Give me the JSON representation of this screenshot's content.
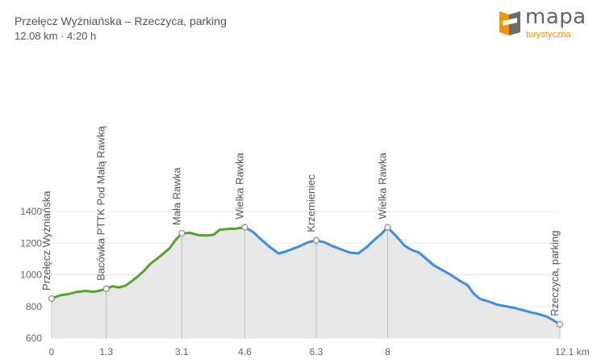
{
  "header": {
    "title": "Przełęcz Wyżniańska – Rzeczyca, parking",
    "subtitle": "12.08 km · 4:20 h"
  },
  "brand": {
    "name": "mapa",
    "sub": "turystyczna",
    "accent": "#f29400",
    "icon": "map-logo-icon"
  },
  "colors": {
    "ascent": "#5aa02c",
    "descent": "#3a8de0",
    "fill": "#e7e7e7",
    "grid": "#e9e9e9",
    "marker_line": "#bdbdbd"
  },
  "chart_data": {
    "type": "area",
    "xlabel": "",
    "ylabel": "",
    "x_unit": "km",
    "xlim": [
      0,
      12.1
    ],
    "ylim": [
      600,
      1400
    ],
    "yticks": [
      600,
      800,
      1000,
      1200,
      1400
    ],
    "xticks": [
      {
        "value": 0,
        "label": "0"
      },
      {
        "value": 1.3,
        "label": "1.3"
      },
      {
        "value": 3.1,
        "label": "3.1"
      },
      {
        "value": 4.6,
        "label": "4.6"
      },
      {
        "value": 6.3,
        "label": "6.3"
      },
      {
        "value": 8,
        "label": "8"
      },
      {
        "value": 12.1,
        "label": "12.1 km"
      }
    ],
    "grid": true,
    "series": [
      {
        "segment": "ascent",
        "color": "#5aa02c",
        "points": [
          [
            0,
            850
          ],
          [
            0.2,
            870
          ],
          [
            0.4,
            878
          ],
          [
            0.6,
            892
          ],
          [
            0.8,
            898
          ],
          [
            1.0,
            893
          ],
          [
            1.15,
            900
          ],
          [
            1.3,
            912
          ],
          [
            1.45,
            928
          ],
          [
            1.6,
            920
          ],
          [
            1.75,
            930
          ],
          [
            1.9,
            958
          ],
          [
            2.05,
            990
          ],
          [
            2.2,
            1025
          ],
          [
            2.35,
            1070
          ],
          [
            2.5,
            1100
          ],
          [
            2.65,
            1132
          ],
          [
            2.8,
            1165
          ],
          [
            2.95,
            1220
          ],
          [
            3.1,
            1262
          ],
          [
            3.3,
            1265
          ],
          [
            3.5,
            1250
          ],
          [
            3.7,
            1248
          ],
          [
            3.85,
            1252
          ],
          [
            4.0,
            1285
          ],
          [
            4.2,
            1290
          ],
          [
            4.4,
            1292
          ],
          [
            4.6,
            1300
          ]
        ]
      },
      {
        "segment": "descent",
        "color": "#3a8de0",
        "points": [
          [
            4.6,
            1300
          ],
          [
            4.8,
            1270
          ],
          [
            5.0,
            1220
          ],
          [
            5.2,
            1175
          ],
          [
            5.4,
            1135
          ],
          [
            5.55,
            1145
          ],
          [
            5.7,
            1160
          ],
          [
            5.9,
            1180
          ],
          [
            6.1,
            1205
          ],
          [
            6.3,
            1218
          ],
          [
            6.5,
            1205
          ],
          [
            6.7,
            1180
          ],
          [
            6.9,
            1160
          ],
          [
            7.1,
            1140
          ],
          [
            7.3,
            1135
          ],
          [
            7.5,
            1175
          ],
          [
            7.7,
            1225
          ],
          [
            7.85,
            1258
          ],
          [
            8.0,
            1300
          ],
          [
            8.2,
            1245
          ],
          [
            8.4,
            1185
          ],
          [
            8.55,
            1160
          ],
          [
            8.75,
            1140
          ],
          [
            8.9,
            1105
          ],
          [
            9.1,
            1060
          ],
          [
            9.3,
            1030
          ],
          [
            9.5,
            1000
          ],
          [
            9.7,
            965
          ],
          [
            9.9,
            935
          ],
          [
            10.05,
            880
          ],
          [
            10.2,
            848
          ],
          [
            10.4,
            832
          ],
          [
            10.6,
            812
          ],
          [
            10.8,
            802
          ],
          [
            11.0,
            792
          ],
          [
            11.2,
            778
          ],
          [
            11.4,
            764
          ],
          [
            11.6,
            752
          ],
          [
            11.8,
            735
          ],
          [
            11.95,
            712
          ],
          [
            12.1,
            688
          ]
        ]
      }
    ],
    "waypoints": [
      {
        "x": 0,
        "y": 850,
        "label": "Przełęcz Wyżniańska"
      },
      {
        "x": 1.3,
        "y": 912,
        "label": "Bacówka PTTK Pod Małą Rawką"
      },
      {
        "x": 3.1,
        "y": 1262,
        "label": "Mała Rawka"
      },
      {
        "x": 4.6,
        "y": 1300,
        "label": "Wielka Rawka"
      },
      {
        "x": 6.3,
        "y": 1218,
        "label": "Krzemieniec"
      },
      {
        "x": 8.0,
        "y": 1300,
        "label": "Wielka Rawka"
      },
      {
        "x": 12.1,
        "y": 688,
        "label": "Rzeczyca, parking"
      }
    ]
  }
}
